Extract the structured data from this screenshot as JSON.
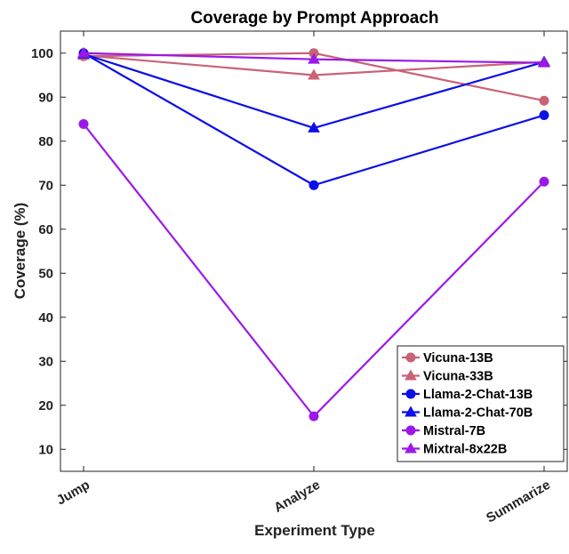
{
  "chart_data": {
    "type": "line",
    "title": "Coverage by Prompt Approach",
    "xlabel": "Experiment Type",
    "ylabel": "Coverage (%)",
    "categories": [
      "Jump",
      "Analyze",
      "Summarize"
    ],
    "ylim": [
      5,
      105
    ],
    "yticks": [
      10,
      20,
      30,
      40,
      50,
      60,
      70,
      80,
      90,
      100
    ],
    "legend_position": "bottom-right",
    "grid": false,
    "series": [
      {
        "name": "Vicuna-13B",
        "values": [
          99.3,
          100,
          89.2
        ],
        "color": "#c96277",
        "marker": "plus-circle"
      },
      {
        "name": "Vicuna-33B",
        "values": [
          99.5,
          95.0,
          98.0
        ],
        "color": "#c96277",
        "marker": "triangle"
      },
      {
        "name": "Llama-2-Chat-13B",
        "values": [
          100,
          70.0,
          85.9
        ],
        "color": "#0d0ee8",
        "marker": "plus-circle"
      },
      {
        "name": "Llama-2-Chat-70B",
        "values": [
          99.8,
          83.0,
          98.0
        ],
        "color": "#0d0ee8",
        "marker": "triangle"
      },
      {
        "name": "Mistral-7B",
        "values": [
          83.9,
          17.5,
          70.8
        ],
        "color": "#9b19e8",
        "marker": "plus-circle"
      },
      {
        "name": "Mixtral-8x22B",
        "values": [
          100,
          98.6,
          97.8
        ],
        "color": "#9b19e8",
        "marker": "triangle"
      }
    ]
  }
}
